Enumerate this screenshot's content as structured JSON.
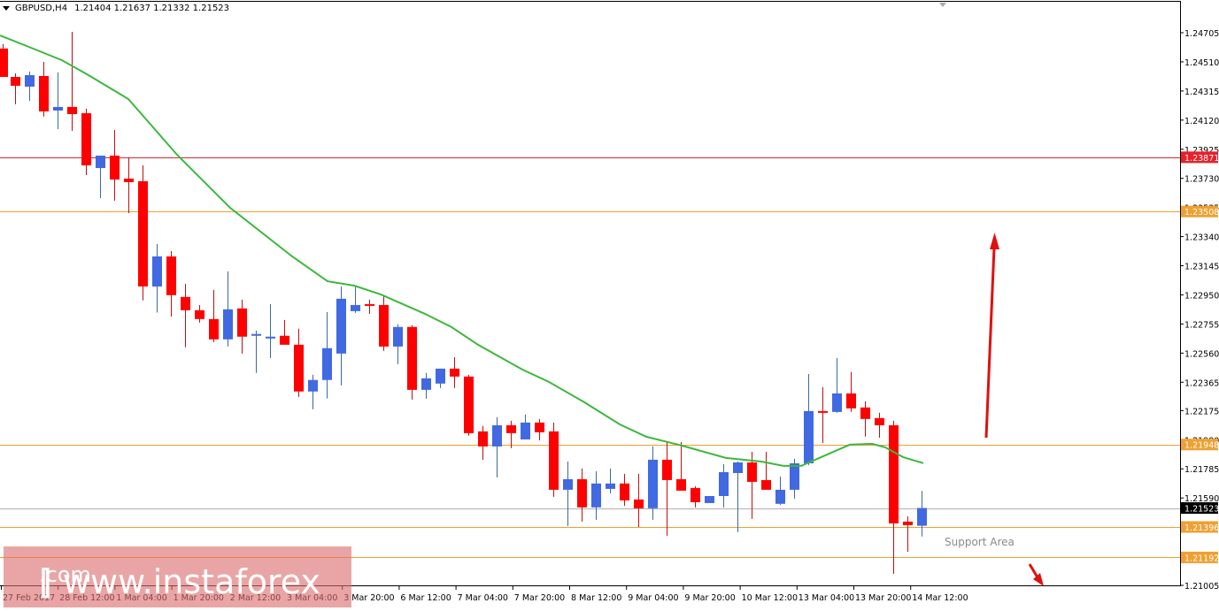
{
  "header": {
    "symbol": "GBPUSD,H4",
    "ohlc": "1.21404 1.21637 1.21332 1.21523",
    "open": "1.21404",
    "high": "1.21637",
    "low": "1.21332",
    "close": "1.21523"
  },
  "watermark": {
    "text_main": "[ www.instaforex",
    "text_tld": ".com",
    "text_end": " ]"
  },
  "annotations": {
    "support_label": "Support Area",
    "arrow_up": "bullish-arrow",
    "arrow_down": "bearish-arrow"
  },
  "colors": {
    "bull": "#4169e1",
    "bear": "#ff0000",
    "ma": "#3cb83c",
    "resistance_red": "#d42a2a",
    "level_orange": "#f0a030",
    "current_price_line": "#b0b0b0"
  },
  "price_axis": {
    "ticks": [
      "1.24705",
      "1.24510",
      "1.24315",
      "1.24120",
      "1.23925",
      "1.23730",
      "1.23535",
      "1.23340",
      "1.23145",
      "1.22950",
      "1.22755",
      "1.22560",
      "1.22365",
      "1.22175",
      "1.21980",
      "1.21785",
      "1.21590",
      "1.21005"
    ],
    "level_labels": [
      {
        "value": "1.23871",
        "kind": "red"
      },
      {
        "value": "1.23508",
        "kind": "orange"
      },
      {
        "value": "1.21948",
        "kind": "orange"
      },
      {
        "value": "1.21523",
        "kind": "current"
      },
      {
        "value": "1.21396",
        "kind": "orange"
      },
      {
        "value": "1.21192",
        "kind": "orange"
      }
    ]
  },
  "time_axis": {
    "labels": [
      "27 Feb 2017",
      "28 Feb 12:00",
      "1 Mar 04:00",
      "1 Mar 20:00",
      "2 Mar 12:00",
      "3 Mar 04:00",
      "3 Mar 20:00",
      "6 Mar 12:00",
      "7 Mar 04:00",
      "7 Mar 20:00",
      "8 Mar 12:00",
      "9 Mar 04:00",
      "9 Mar 20:00",
      "10 Mar 12:00",
      "13 Mar 04:00",
      "13 Mar 20:00",
      "14 Mar 12:00"
    ]
  },
  "chart_data": {
    "type": "candlestick",
    "title": "GBPUSD,H4",
    "xlabel": "",
    "ylabel": "",
    "ylim": [
      1.2092,
      1.2495
    ],
    "grid": false,
    "legend": [],
    "horizontal_levels": [
      {
        "price": 1.23871,
        "color": "red"
      },
      {
        "price": 1.23508,
        "color": "orange"
      },
      {
        "price": 1.21948,
        "color": "orange"
      },
      {
        "price": 1.21523,
        "color": "gray",
        "label": "current"
      },
      {
        "price": 1.21396,
        "color": "orange"
      },
      {
        "price": 1.21192,
        "color": "orange"
      }
    ],
    "moving_average": [
      [
        0,
        1.24687
      ],
      [
        30,
        1.24616
      ],
      [
        70,
        1.24521
      ],
      [
        100,
        1.24421
      ],
      [
        145,
        1.24261
      ],
      [
        200,
        1.23888
      ],
      [
        260,
        1.23533
      ],
      [
        330,
        1.23207
      ],
      [
        370,
        1.23041
      ],
      [
        400,
        1.23012
      ],
      [
        430,
        1.22953
      ],
      [
        480,
        1.22823
      ],
      [
        510,
        1.22734
      ],
      [
        540,
        1.22616
      ],
      [
        590,
        1.2245
      ],
      [
        620,
        1.22367
      ],
      [
        660,
        1.22231
      ],
      [
        700,
        1.22083
      ],
      [
        730,
        1.22
      ],
      [
        770,
        1.21941
      ],
      [
        820,
        1.21858
      ],
      [
        860,
        1.21834
      ],
      [
        885,
        1.21805
      ],
      [
        905,
        1.21805
      ],
      [
        930,
        1.2187
      ],
      [
        960,
        1.21947
      ],
      [
        985,
        1.21953
      ],
      [
        1000,
        1.21929
      ],
      [
        1020,
        1.21864
      ],
      [
        1043,
        1.21823
      ]
    ],
    "candles_px_note": "x is pixel center; o,h,l,c are prices",
    "candles": [
      {
        "x": 3,
        "o": 1.24599,
        "h": 1.24629,
        "l": 1.24415,
        "c": 1.24409
      },
      {
        "x": 17,
        "o": 1.24409,
        "h": 1.24433,
        "l": 1.24226,
        "c": 1.2435
      },
      {
        "x": 33,
        "o": 1.24344,
        "h": 1.24445,
        "l": 1.24249,
        "c": 1.24421
      },
      {
        "x": 49,
        "o": 1.24415,
        "h": 1.2451,
        "l": 1.24143,
        "c": 1.24178
      },
      {
        "x": 65,
        "o": 1.24184,
        "h": 1.24439,
        "l": 1.2406,
        "c": 1.24208
      },
      {
        "x": 81,
        "o": 1.24208,
        "h": 1.24711,
        "l": 1.24048,
        "c": 1.2416
      },
      {
        "x": 97,
        "o": 1.24166,
        "h": 1.24196,
        "l": 1.23752,
        "c": 1.23817
      },
      {
        "x": 113,
        "o": 1.23799,
        "h": 1.23882,
        "l": 1.23598,
        "c": 1.23882
      },
      {
        "x": 129,
        "o": 1.23882,
        "h": 1.24054,
        "l": 1.2358,
        "c": 1.23722
      },
      {
        "x": 145,
        "o": 1.23728,
        "h": 1.2387,
        "l": 1.23497,
        "c": 1.23705
      },
      {
        "x": 161,
        "o": 1.23711,
        "h": 1.23817,
        "l": 1.22913,
        "c": 1.23006
      },
      {
        "x": 177,
        "o": 1.23006,
        "h": 1.2329,
        "l": 1.22831,
        "c": 1.23207
      },
      {
        "x": 193,
        "o": 1.23207,
        "h": 1.23243,
        "l": 1.22805,
        "c": 1.22948
      },
      {
        "x": 209,
        "o": 1.22936,
        "h": 1.23024,
        "l": 1.22599,
        "c": 1.22847
      },
      {
        "x": 225,
        "o": 1.22847,
        "h": 1.22882,
        "l": 1.22764,
        "c": 1.22788
      },
      {
        "x": 241,
        "o": 1.22788,
        "h": 1.22983,
        "l": 1.22634,
        "c": 1.22652
      },
      {
        "x": 257,
        "o": 1.22652,
        "h": 1.23107,
        "l": 1.22604,
        "c": 1.22853
      },
      {
        "x": 273,
        "o": 1.22859,
        "h": 1.22918,
        "l": 1.22557,
        "c": 1.2267
      },
      {
        "x": 289,
        "o": 1.22676,
        "h": 1.22711,
        "l": 1.22427,
        "c": 1.22688
      },
      {
        "x": 305,
        "o": 1.22658,
        "h": 1.22888,
        "l": 1.22527,
        "c": 1.2267
      },
      {
        "x": 321,
        "o": 1.22676,
        "h": 1.22782,
        "l": 1.22634,
        "c": 1.22616
      },
      {
        "x": 337,
        "o": 1.22616,
        "h": 1.22723,
        "l": 1.22267,
        "c": 1.22303
      },
      {
        "x": 353,
        "o": 1.22303,
        "h": 1.22415,
        "l": 1.22184,
        "c": 1.2238
      },
      {
        "x": 369,
        "o": 1.2238,
        "h": 1.22835,
        "l": 1.22256,
        "c": 1.22593
      },
      {
        "x": 385,
        "o": 1.22557,
        "h": 1.23006,
        "l": 1.22344,
        "c": 1.22924
      },
      {
        "x": 401,
        "o": 1.22841,
        "h": 1.23006,
        "l": 1.22829,
        "c": 1.22882
      },
      {
        "x": 417,
        "o": 1.22888,
        "h": 1.22918,
        "l": 1.22823,
        "c": 1.22882
      },
      {
        "x": 433,
        "o": 1.22882,
        "h": 1.22941,
        "l": 1.22575,
        "c": 1.22604
      },
      {
        "x": 449,
        "o": 1.22604,
        "h": 1.22753,
        "l": 1.22486,
        "c": 1.22735
      },
      {
        "x": 465,
        "o": 1.22735,
        "h": 1.22747,
        "l": 1.22249,
        "c": 1.22314
      },
      {
        "x": 481,
        "o": 1.22314,
        "h": 1.22427,
        "l": 1.22255,
        "c": 1.22391
      },
      {
        "x": 497,
        "o": 1.22356,
        "h": 1.22456,
        "l": 1.22326,
        "c": 1.22456
      },
      {
        "x": 513,
        "o": 1.22456,
        "h": 1.22533,
        "l": 1.22326,
        "c": 1.22403
      },
      {
        "x": 529,
        "o": 1.22403,
        "h": 1.22415,
        "l": 1.22007,
        "c": 1.22024
      },
      {
        "x": 545,
        "o": 1.22036,
        "h": 1.22072,
        "l": 1.21846,
        "c": 1.21935
      },
      {
        "x": 561,
        "o": 1.21935,
        "h": 1.22131,
        "l": 1.21728,
        "c": 1.22077
      },
      {
        "x": 577,
        "o": 1.22077,
        "h": 1.22107,
        "l": 1.21923,
        "c": 1.22024
      },
      {
        "x": 593,
        "o": 1.21982,
        "h": 1.22148,
        "l": 1.21982,
        "c": 1.22095
      },
      {
        "x": 609,
        "o": 1.22095,
        "h": 1.22119,
        "l": 1.21976,
        "c": 1.2203
      },
      {
        "x": 625,
        "o": 1.22036,
        "h": 1.22095,
        "l": 1.21598,
        "c": 1.21645
      },
      {
        "x": 641,
        "o": 1.21645,
        "h": 1.21834,
        "l": 1.21402,
        "c": 1.21716
      },
      {
        "x": 657,
        "o": 1.21716,
        "h": 1.21787,
        "l": 1.21432,
        "c": 1.21527
      },
      {
        "x": 673,
        "o": 1.21527,
        "h": 1.21769,
        "l": 1.21444,
        "c": 1.21687
      },
      {
        "x": 689,
        "o": 1.21651,
        "h": 1.21787,
        "l": 1.21621,
        "c": 1.21687
      },
      {
        "x": 705,
        "o": 1.21687,
        "h": 1.21752,
        "l": 1.21538,
        "c": 1.21574
      },
      {
        "x": 721,
        "o": 1.2158,
        "h": 1.21752,
        "l": 1.21396,
        "c": 1.21521
      },
      {
        "x": 737,
        "o": 1.21521,
        "h": 1.21935,
        "l": 1.21444,
        "c": 1.21846
      },
      {
        "x": 753,
        "o": 1.21846,
        "h": 1.21964,
        "l": 1.21337,
        "c": 1.2171
      },
      {
        "x": 769,
        "o": 1.21716,
        "h": 1.21964,
        "l": 1.21645,
        "c": 1.21639
      },
      {
        "x": 785,
        "o": 1.21657,
        "h": 1.21669,
        "l": 1.21527,
        "c": 1.21562
      },
      {
        "x": 801,
        "o": 1.21556,
        "h": 1.21603,
        "l": 1.21603,
        "c": 1.21603
      },
      {
        "x": 817,
        "o": 1.21603,
        "h": 1.21817,
        "l": 1.21527,
        "c": 1.21763
      },
      {
        "x": 833,
        "o": 1.21757,
        "h": 1.21834,
        "l": 1.21361,
        "c": 1.21828
      },
      {
        "x": 849,
        "o": 1.21828,
        "h": 1.21899,
        "l": 1.2145,
        "c": 1.21698
      },
      {
        "x": 865,
        "o": 1.2171,
        "h": 1.21899,
        "l": 1.2168,
        "c": 1.21645
      },
      {
        "x": 881,
        "o": 1.21551,
        "h": 1.21734,
        "l": 1.21544,
        "c": 1.21645
      },
      {
        "x": 897,
        "o": 1.21645,
        "h": 1.21852,
        "l": 1.21586,
        "c": 1.21822
      },
      {
        "x": 913,
        "o": 1.21822,
        "h": 1.2242,
        "l": 1.21811,
        "c": 1.22172
      },
      {
        "x": 929,
        "o": 1.22172,
        "h": 1.22332,
        "l": 1.21958,
        "c": 1.22166
      },
      {
        "x": 945,
        "o": 1.22166,
        "h": 1.22527,
        "l": 1.2216,
        "c": 1.2229
      },
      {
        "x": 961,
        "o": 1.2229,
        "h": 1.22433,
        "l": 1.22166,
        "c": 1.2219
      },
      {
        "x": 977,
        "o": 1.22196,
        "h": 1.22237,
        "l": 1.22,
        "c": 1.22119
      },
      {
        "x": 993,
        "o": 1.22125,
        "h": 1.2216,
        "l": 1.21994,
        "c": 1.22077
      },
      {
        "x": 1009,
        "o": 1.22077,
        "h": 1.22107,
        "l": 1.21083,
        "c": 1.2142
      },
      {
        "x": 1025,
        "o": 1.21432,
        "h": 1.21467,
        "l": 1.21229,
        "c": 1.21408
      },
      {
        "x": 1041,
        "o": 1.21404,
        "h": 1.21637,
        "l": 1.21332,
        "c": 1.21523
      }
    ]
  }
}
